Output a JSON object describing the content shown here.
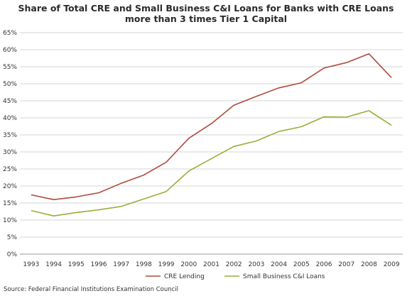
{
  "chart_data": {
    "type": "line",
    "title_lines": [
      "Share of Total CRE and Small Business C&I Loans for Banks with CRE Loans",
      "more than 3 times Tier 1 Capital"
    ],
    "xlabel": "",
    "ylabel": "",
    "x": [
      "1993",
      "1994",
      "1995",
      "1996",
      "1997",
      "1998",
      "1999",
      "2000",
      "2001",
      "2002",
      "2003",
      "2004",
      "2005",
      "2006",
      "2007",
      "2008",
      "2009"
    ],
    "y_ticks": [
      "0%",
      "5%",
      "10%",
      "15%",
      "20%",
      "25%",
      "30%",
      "35%",
      "40%",
      "45%",
      "50%",
      "55%",
      "60%",
      "65%"
    ],
    "ylim": [
      0,
      65
    ],
    "grid": true,
    "legend_position": "bottom",
    "series": [
      {
        "name": "CRE Lending",
        "color": "#b04a3c",
        "values": [
          17.4,
          16.0,
          16.8,
          18.0,
          20.8,
          23.2,
          27.0,
          34.0,
          38.3,
          43.7,
          46.3,
          48.8,
          50.3,
          54.6,
          56.2,
          58.8,
          51.8
        ]
      },
      {
        "name": "Small Business C&I Loans",
        "color": "#9aae3a",
        "values": [
          12.8,
          11.2,
          12.2,
          13.0,
          14.0,
          16.2,
          18.4,
          24.4,
          28.0,
          31.6,
          33.2,
          36.0,
          37.4,
          40.3,
          40.2,
          42.1,
          37.8
        ]
      }
    ]
  },
  "source": "Source: Federal Financial Institutions Examination Council"
}
